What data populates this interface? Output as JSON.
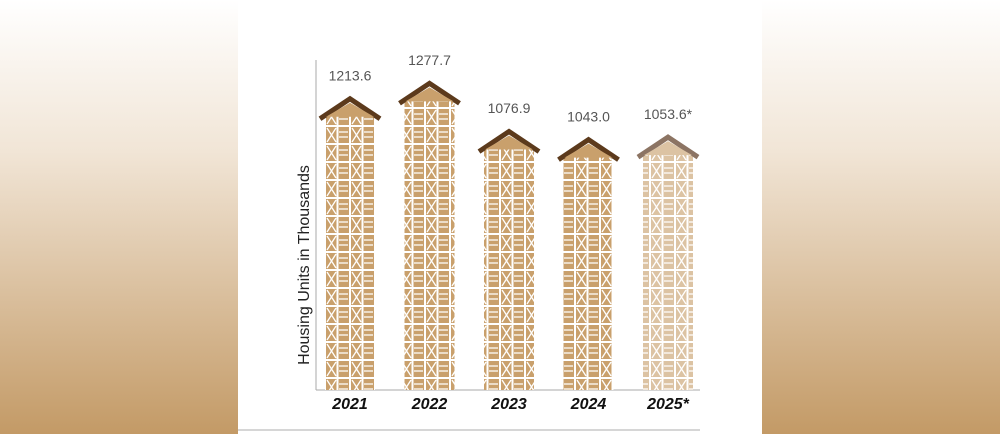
{
  "chart_data": {
    "type": "house-bar",
    "y_label": "Housing Units in Thousands",
    "categories": [
      "2021",
      "2022",
      "2023",
      "2024",
      "2025*"
    ],
    "values": [
      1213.6,
      1277.7,
      1076.9,
      1043.0,
      1053.6
    ],
    "value_labels": [
      "1213.6",
      "1277.7",
      "1076.9",
      "1043.0",
      "1053.6*"
    ],
    "colors": [
      "#c9a06c",
      "#c9a06c",
      "#c9a06c",
      "#c9a06c",
      "#dcc3a3"
    ],
    "roof_colors": [
      "#5c3a1c",
      "#5c3a1c",
      "#5c3a1c",
      "#5c3a1c",
      "#8c7463"
    ],
    "ylim": [
      0,
      1400
    ]
  }
}
